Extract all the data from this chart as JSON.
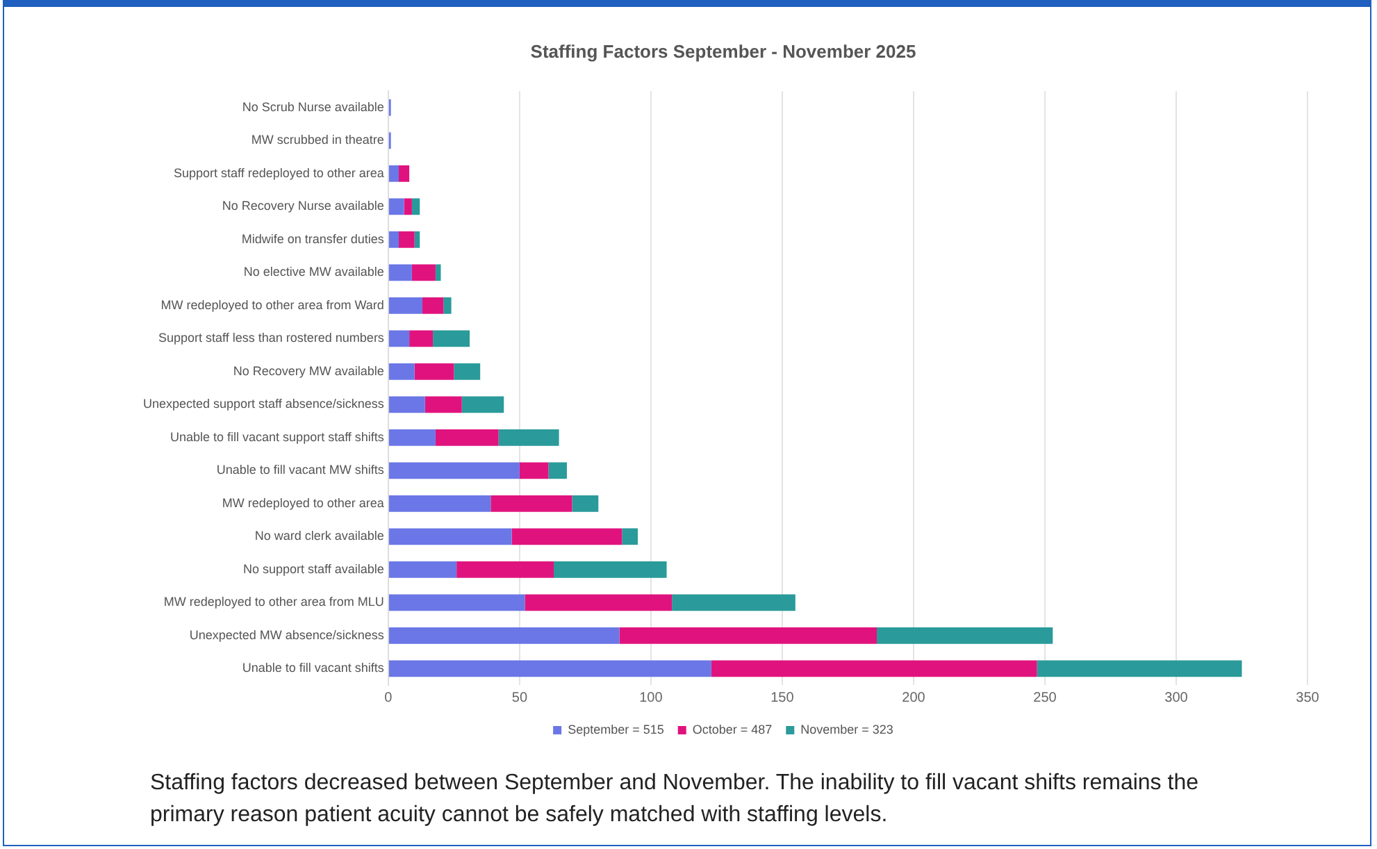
{
  "chart_data": {
    "type": "bar",
    "orientation": "horizontal",
    "stacked": true,
    "title": "Staffing Factors September - November 2025",
    "categories": [
      "No Scrub Nurse available",
      "MW scrubbed in theatre",
      "Support staff redeployed to other area",
      "No Recovery Nurse available",
      "Midwife on transfer duties",
      "No elective MW available",
      "MW redeployed to other area from Ward",
      "Support staff less than rostered numbers",
      "No Recovery MW available",
      "Unexpected support staff absence/sickness",
      "Unable to fill vacant support staff shifts",
      "Unable to fill vacant MW shifts",
      "MW redeployed to other area",
      "No ward clerk available",
      "No support staff available",
      "MW redeployed to other area from MLU",
      "Unexpected MW absence/sickness",
      "Unable to fill vacant shifts"
    ],
    "series": [
      {
        "name": "September = 515",
        "color": "#6b77e6",
        "values": [
          1,
          1,
          4,
          6,
          4,
          9,
          13,
          8,
          10,
          14,
          18,
          50,
          39,
          47,
          26,
          52,
          88,
          123
        ]
      },
      {
        "name": "October = 487",
        "color": "#e0137e",
        "values": [
          0,
          0,
          4,
          3,
          6,
          9,
          8,
          9,
          15,
          14,
          24,
          11,
          31,
          42,
          37,
          56,
          98,
          124
        ]
      },
      {
        "name": "November = 323",
        "color": "#2a9a9a",
        "values": [
          0,
          0,
          0,
          3,
          2,
          2,
          3,
          14,
          10,
          16,
          23,
          7,
          10,
          6,
          43,
          47,
          67,
          78
        ]
      }
    ],
    "xlim": [
      0,
      350
    ],
    "xticks": [
      0,
      50,
      100,
      150,
      200,
      250,
      300,
      350
    ],
    "grid": "x",
    "legend": "bottom",
    "annotations": [
      "Staffing factors decreased between September and November. The inability to fill vacant shifts remains the primary reason patient acuity cannot be safely matched with staffing levels."
    ]
  }
}
